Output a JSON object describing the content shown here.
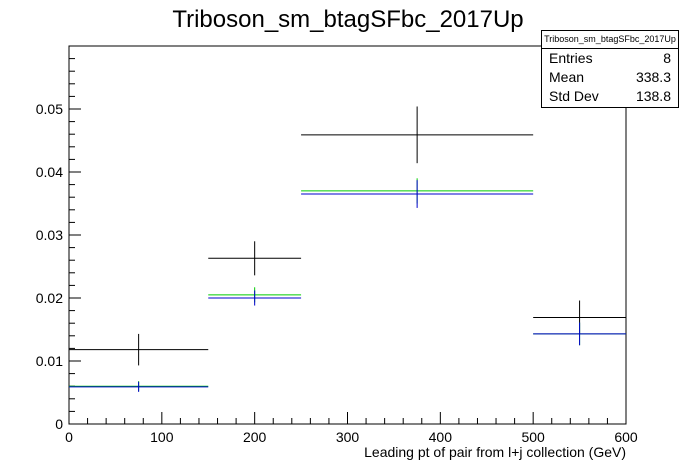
{
  "title": "Triboson_sm_btagSFbc_2017Up",
  "stats": {
    "title": "Triboson_sm_btagSFbc_2017Up",
    "rows": [
      {
        "label": "Entries",
        "value": "8"
      },
      {
        "label": "Mean",
        "value": "338.3"
      },
      {
        "label": "Std Dev",
        "value": "138.8"
      }
    ]
  },
  "chart_data": {
    "type": "histogram",
    "title": "Triboson_sm_btagSFbc_2017Up",
    "xlabel": "Leading pt of pair from l+j collection (GeV)",
    "ylabel": "",
    "xlim": [
      0,
      600
    ],
    "ylim": [
      0,
      0.06
    ],
    "xticks": [
      0,
      100,
      200,
      300,
      400,
      500,
      600
    ],
    "yticks": [
      0,
      0.01,
      0.02,
      0.03,
      0.04,
      0.05
    ],
    "ytick_labels": [
      "0",
      "0.01",
      "0.02",
      "0.03",
      "0.04",
      "0.05"
    ],
    "bins": [
      [
        0,
        150
      ],
      [
        150,
        250
      ],
      [
        250,
        500
      ],
      [
        500,
        600
      ]
    ],
    "series": [
      {
        "color": "#000000",
        "values": [
          0.0118,
          0.0263,
          0.0459,
          0.0169
        ],
        "errors": [
          0.0025,
          0.0027,
          0.0045,
          0.0027
        ]
      },
      {
        "color": "#00cc00",
        "values": [
          0.006,
          0.0205,
          0.037,
          0.0143
        ],
        "errors": [
          0.0008,
          0.0012,
          0.002,
          0.0018
        ]
      },
      {
        "color": "#0000cc",
        "values": [
          0.0059,
          0.02,
          0.0365,
          0.0143
        ],
        "errors": [
          0.0008,
          0.0012,
          0.0022,
          0.0018
        ]
      }
    ]
  }
}
